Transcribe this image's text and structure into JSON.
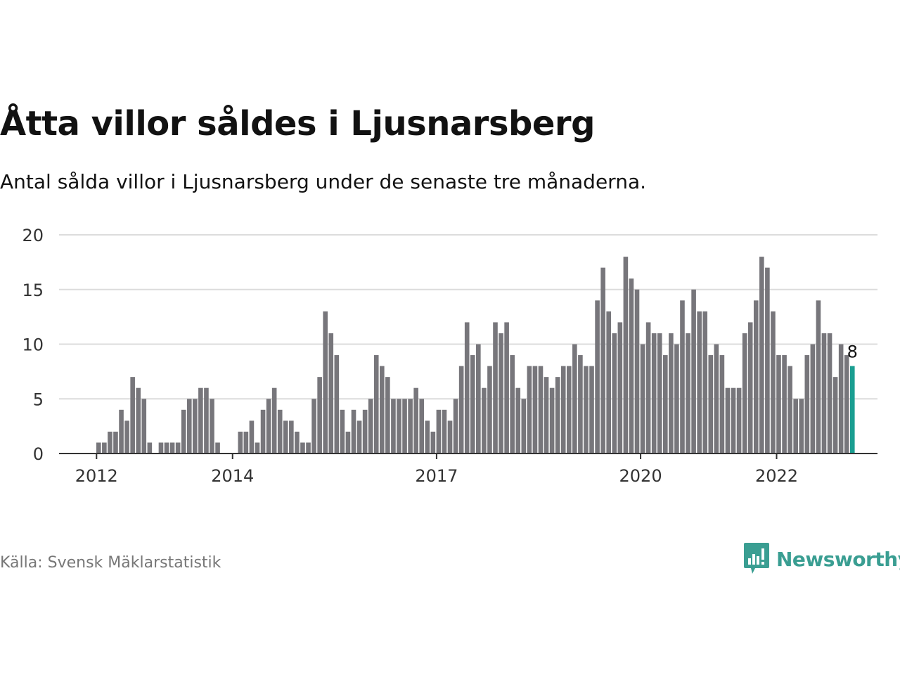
{
  "title": "Åtta villor såldes i Ljusnarsberg",
  "subtitle": "Antal sålda villor i Ljusnarsberg under de senaste tre månaderna.",
  "source": "Källa: Svensk Mäklarstatistik",
  "brand": "Newsworthy",
  "colors": {
    "bar": "#77767b",
    "highlight": "#1a9e91",
    "grid": "#dcdcdc",
    "axis": "#333333",
    "brand": "#3a9e92"
  },
  "chart_data": {
    "type": "bar",
    "xlabel": "",
    "ylabel": "",
    "ylim": [
      0,
      20
    ],
    "yticks": [
      0,
      5,
      10,
      15,
      20
    ],
    "xticks": [
      {
        "label": "2012",
        "index": 0
      },
      {
        "label": "2014",
        "index": 24
      },
      {
        "label": "2017",
        "index": 60
      },
      {
        "label": "2020",
        "index": 96
      },
      {
        "label": "2022",
        "index": 120
      }
    ],
    "x_start": "2012-01",
    "x_end": "2023-02",
    "values": [
      1,
      1,
      2,
      2,
      4,
      3,
      7,
      6,
      5,
      1,
      0,
      1,
      1,
      1,
      1,
      4,
      5,
      5,
      6,
      6,
      5,
      1,
      0,
      0,
      0,
      2,
      2,
      3,
      1,
      4,
      5,
      6,
      4,
      3,
      3,
      2,
      1,
      1,
      5,
      7,
      13,
      11,
      9,
      4,
      2,
      4,
      3,
      4,
      5,
      9,
      8,
      7,
      5,
      5,
      5,
      5,
      6,
      5,
      3,
      2,
      4,
      4,
      3,
      5,
      8,
      12,
      9,
      10,
      6,
      8,
      12,
      11,
      12,
      9,
      6,
      5,
      8,
      8,
      8,
      7,
      6,
      7,
      8,
      8,
      10,
      9,
      8,
      8,
      14,
      17,
      13,
      11,
      12,
      18,
      16,
      15,
      10,
      12,
      11,
      11,
      9,
      11,
      10,
      14,
      11,
      15,
      13,
      13,
      9,
      10,
      9,
      6,
      6,
      6,
      11,
      12,
      14,
      18,
      17,
      13,
      9,
      9,
      8,
      5,
      5,
      9,
      10,
      14,
      11,
      11,
      7,
      10,
      9,
      8
    ],
    "highlight_index": 133,
    "highlight_label": "8"
  }
}
